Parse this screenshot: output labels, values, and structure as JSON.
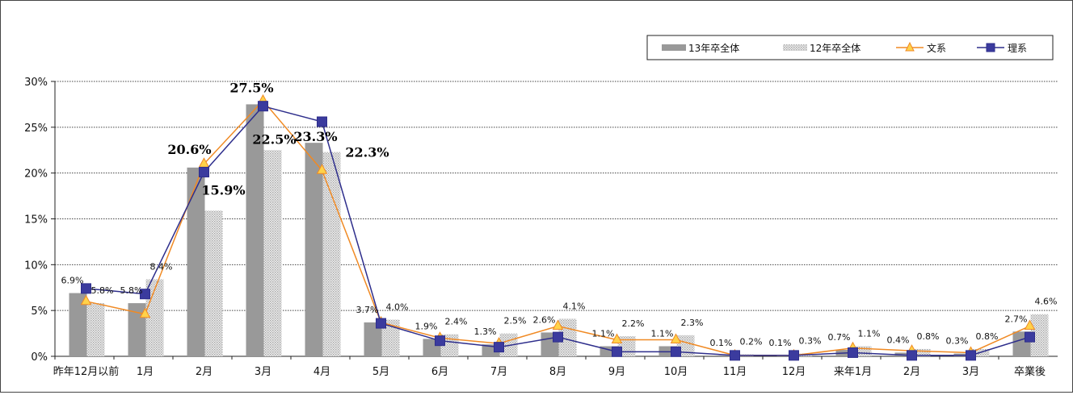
{
  "chart_data": {
    "type": "bar",
    "title": "",
    "xlabel": "",
    "ylabel": "",
    "ylim": [
      0,
      30
    ],
    "yticks": [
      "0%",
      "5%",
      "10%",
      "15%",
      "20%",
      "25%",
      "30%"
    ],
    "ytick_values": [
      0,
      5,
      10,
      15,
      20,
      25,
      30
    ],
    "grid": true,
    "legend_position": "top-right",
    "categories": [
      "昨年12月以前",
      "1月",
      "2月",
      "3月",
      "4月",
      "5月",
      "6月",
      "7月",
      "8月",
      "9月",
      "10月",
      "11月",
      "12月",
      "来年1月",
      "2月",
      "3月",
      "卒業後"
    ],
    "series": [
      {
        "name": "13年卒全体",
        "kind": "bar",
        "color": "#999999",
        "values": [
          6.9,
          5.8,
          20.6,
          27.5,
          23.3,
          3.7,
          1.9,
          1.3,
          2.6,
          1.1,
          1.1,
          0.1,
          0.1,
          0.7,
          0.4,
          0.3,
          2.7
        ],
        "labels": [
          "6.9%",
          "5.8%",
          "20.6%",
          "27.5%",
          "23.3%",
          "3.7%",
          "1.9%",
          "1.3%",
          "2.6%",
          "1.1%",
          "1.1%",
          "0.1%",
          "0.1%",
          "0.7%",
          "0.4%",
          "0.3%",
          "2.7%"
        ]
      },
      {
        "name": "12年卒全体",
        "kind": "bar-dotted",
        "color": "#cfcfcf",
        "values": [
          5.8,
          8.4,
          15.9,
          22.5,
          22.3,
          4.0,
          2.4,
          2.5,
          4.1,
          2.2,
          2.3,
          0.2,
          0.3,
          1.1,
          0.8,
          0.8,
          4.6
        ],
        "labels": [
          "5.8%",
          "8.4%",
          "15.9%",
          "22.5%",
          "22.3%",
          "4.0%",
          "2.4%",
          "2.5%",
          "4.1%",
          "2.2%",
          "2.3%",
          "0.2%",
          "0.3%",
          "1.1%",
          "0.8%",
          "0.8%",
          "4.6%"
        ]
      },
      {
        "name": "文系",
        "kind": "line-triangle",
        "color": "#f08a24",
        "marker_fill": "#ffd24a",
        "values": [
          6.0,
          4.6,
          21.0,
          27.9,
          20.3,
          3.7,
          2.0,
          1.4,
          3.3,
          1.8,
          1.8,
          0.1,
          0.1,
          0.9,
          0.6,
          0.4,
          3.3
        ]
      },
      {
        "name": "理系",
        "kind": "line-square",
        "color": "#2e2e8c",
        "marker_fill": "#3b3b9e",
        "values": [
          7.4,
          6.8,
          20.1,
          27.3,
          25.6,
          3.6,
          1.7,
          1.0,
          2.1,
          0.5,
          0.5,
          0.1,
          0.1,
          0.4,
          0.1,
          0.1,
          2.1
        ]
      }
    ]
  }
}
